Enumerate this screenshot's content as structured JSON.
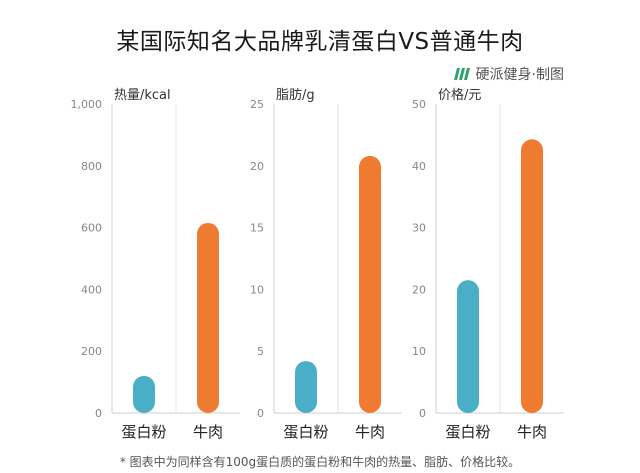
{
  "title": "某国际知名大品牌乳清蛋白VS普通牛肉",
  "brand": {
    "text": "硬派健身·制图",
    "icon": "brand-logo-icon",
    "color": "#2fa36b"
  },
  "footnote": "* 图表中为同样含有100g蛋白质的蛋白粉和牛肉的热量、脂肪、价格比较。",
  "colors": {
    "protein": "#4aaec6",
    "beef": "#ef7b30",
    "grid": "#e4e4e4"
  },
  "chart_data": [
    {
      "type": "bar",
      "ylabel": "热量/kcal",
      "categories": [
        "蛋白粉",
        "牛肉"
      ],
      "values": [
        120,
        615
      ],
      "ylim": [
        0,
        1000
      ],
      "ticks": [
        "0",
        "200",
        "400",
        "600",
        "800",
        "1,000"
      ]
    },
    {
      "type": "bar",
      "ylabel": "脂肪/g",
      "categories": [
        "蛋白粉",
        "牛肉"
      ],
      "values": [
        4.2,
        20.8
      ],
      "ylim": [
        0,
        25
      ],
      "ticks": [
        "0",
        "5",
        "10",
        "15",
        "20",
        "25"
      ]
    },
    {
      "type": "bar",
      "ylabel": "价格/元",
      "categories": [
        "蛋白粉",
        "牛肉"
      ],
      "values": [
        21.5,
        44.3
      ],
      "ylim": [
        0,
        50
      ],
      "ticks": [
        "0",
        "10",
        "20",
        "30",
        "40",
        "50"
      ]
    }
  ]
}
